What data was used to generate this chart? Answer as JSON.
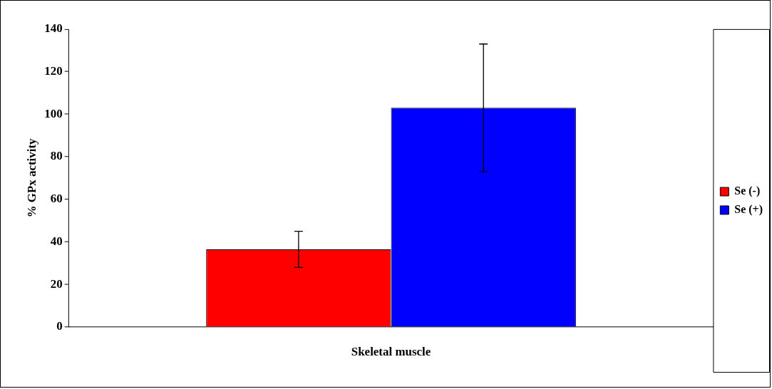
{
  "chart_data": {
    "type": "bar",
    "ylabel": "% GPx activity",
    "categories": [
      "Skeletal muscle"
    ],
    "series": [
      {
        "name": "Se (-)",
        "color": "#ff0000",
        "values": [
          36.5
        ],
        "errors": [
          8.5
        ]
      },
      {
        "name": "Se (+)",
        "color": "#0000ff",
        "values": [
          103
        ],
        "errors": [
          30
        ]
      }
    ],
    "ylim": [
      0,
      140
    ],
    "yticks": [
      0,
      20,
      40,
      60,
      80,
      100,
      120,
      140
    ],
    "grid": false,
    "legend": "right"
  }
}
